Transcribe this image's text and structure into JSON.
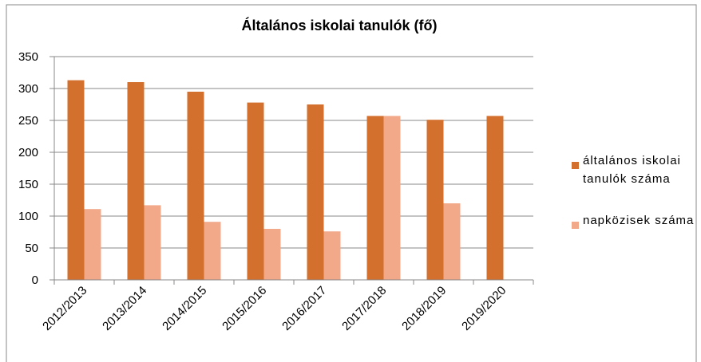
{
  "chart_data": {
    "type": "bar",
    "title": "Általános iskolai tanulók (fő)",
    "categories": [
      "2012/2013",
      "2013/2014",
      "2014/2015",
      "2015/2016",
      "2016/2017",
      "2017/2018",
      "2018/2019",
      "2019/2020"
    ],
    "series": [
      {
        "name": "általános iskolai tanulók száma",
        "color": "#d4702e",
        "values": [
          313,
          310,
          295,
          278,
          275,
          257,
          251,
          257
        ]
      },
      {
        "name": "napközisek száma",
        "color": "#f2a98a",
        "values": [
          111,
          117,
          91,
          80,
          76,
          257,
          120,
          null
        ]
      }
    ],
    "ylim": [
      0,
      350
    ],
    "yticks": [
      0,
      50,
      100,
      150,
      200,
      250,
      300,
      350
    ],
    "grid": true,
    "legend": "right"
  }
}
